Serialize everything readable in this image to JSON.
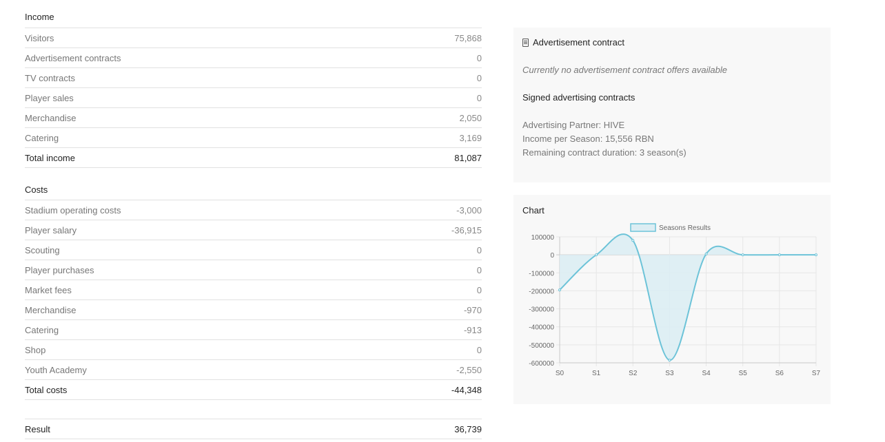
{
  "income": {
    "title": "Income",
    "rows": [
      {
        "label": "Visitors",
        "value": "75,868"
      },
      {
        "label": "Advertisement contracts",
        "value": "0"
      },
      {
        "label": "TV contracts",
        "value": "0"
      },
      {
        "label": "Player sales",
        "value": "0"
      },
      {
        "label": "Merchandise",
        "value": "2,050"
      },
      {
        "label": "Catering",
        "value": "3,169"
      }
    ],
    "total_label": "Total income",
    "total_value": "81,087"
  },
  "costs": {
    "title": "Costs",
    "rows": [
      {
        "label": "Stadium operating costs",
        "value": "-3,000"
      },
      {
        "label": "Player salary",
        "value": "-36,915"
      },
      {
        "label": "Scouting",
        "value": "0"
      },
      {
        "label": "Player purchases",
        "value": "0"
      },
      {
        "label": "Market fees",
        "value": "0"
      },
      {
        "label": "Merchandise",
        "value": "-970"
      },
      {
        "label": "Catering",
        "value": "-913"
      },
      {
        "label": "Shop",
        "value": "0"
      },
      {
        "label": "Youth Academy",
        "value": "-2,550"
      }
    ],
    "total_label": "Total costs",
    "total_value": "-44,348"
  },
  "result": {
    "label": "Result",
    "value": "36,739"
  },
  "advertisement": {
    "title": "Advertisement contract",
    "icon": "document-icon",
    "note": "Currently no advertisement contract offers available",
    "signed_title": "Signed advertising contracts",
    "partner": "Advertising Partner: HIVE",
    "income": "Income per Season: 15,556 RBN",
    "duration": "Remaining contract duration: 3 season(s)"
  },
  "chart_panel": {
    "title": "Chart"
  },
  "chart_data": {
    "type": "line",
    "categories": [
      "S0",
      "S1",
      "S2",
      "S3",
      "S4",
      "S5",
      "S6",
      "S7"
    ],
    "series": [
      {
        "name": "Seasons Results",
        "values": [
          -195000,
          0,
          80000,
          -585000,
          5000,
          0,
          0,
          0
        ]
      }
    ],
    "ylim": [
      -600000,
      100000
    ],
    "yticks": [
      100000,
      0,
      -100000,
      -200000,
      -300000,
      -400000,
      -500000,
      -600000
    ],
    "ytick_labels": [
      "100000",
      "0",
      "-100000",
      "-200000",
      "-300000",
      "-400000",
      "-500000",
      "-600000"
    ],
    "grid": true,
    "legend": "top",
    "colors": {
      "line": "#6cc3d8",
      "fill": "#dcedf3"
    }
  }
}
